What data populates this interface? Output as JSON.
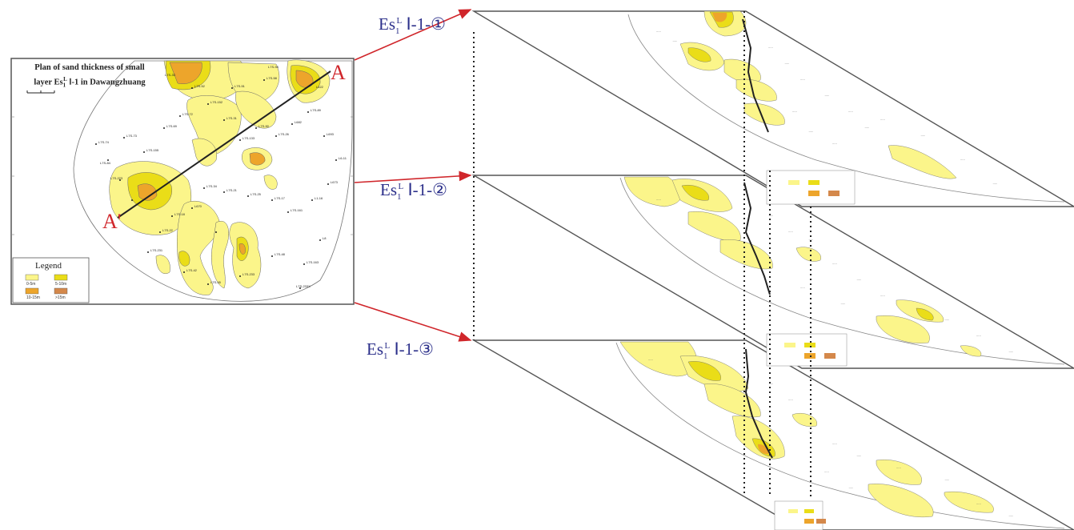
{
  "map": {
    "title_line1": "Plan of sand thickness of small",
    "title_line2_pre": "layer Es",
    "title_line2_sub": "1",
    "title_line2_sup": "L",
    "title_line2_post": " Ⅰ-1 in Dawangzhuang",
    "section_start": "A",
    "section_end": "A'",
    "legend": {
      "title": "Legend",
      "items": [
        {
          "label": "0-5m",
          "color": "#fbf58a"
        },
        {
          "label": "5-10m",
          "color": "#eadd18"
        },
        {
          "label": "10-15m",
          "color": "#eda52b"
        },
        {
          "label": ">15m",
          "color": "#d4884b"
        }
      ]
    }
  },
  "layers": [
    {
      "prefix": "Es",
      "sub": "1",
      "sup": "L",
      "suffix": " Ⅰ-1-①"
    },
    {
      "prefix": "Es",
      "sub": "1",
      "sup": "L",
      "suffix": " Ⅰ-1-②"
    },
    {
      "prefix": "Es",
      "sub": "1",
      "sup": "L",
      "suffix": " Ⅰ-1-③"
    }
  ],
  "colors": {
    "arrow": "#d0262b",
    "label_text": "#2b2f8a",
    "sand_light": "#fbf58a",
    "sand_mid": "#eadd18",
    "sand_dark": "#eda52b",
    "sand_max": "#d4884b"
  }
}
